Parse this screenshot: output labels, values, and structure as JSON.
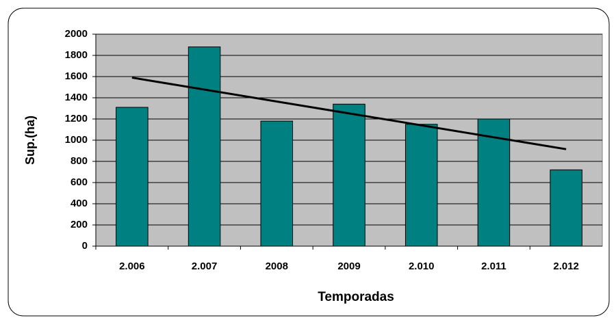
{
  "chart_data": {
    "type": "bar",
    "x_label": "Temporadas",
    "y_label": "Sup.(ha)",
    "categories": [
      "2.006",
      "2.007",
      "2008",
      "2009",
      "2.010",
      "2.011",
      "2.012"
    ],
    "values": [
      1310,
      1880,
      1180,
      1340,
      1150,
      1200,
      720
    ],
    "color": "#008080",
    "trendline": {
      "start": 1590,
      "end": 915,
      "color": "#000000"
    },
    "ylim": [
      0,
      2000
    ],
    "yticks": [
      0,
      200,
      400,
      600,
      800,
      1000,
      1200,
      1400,
      1600,
      1800,
      2000
    ],
    "grid": true,
    "plot_background": "#c0c0c0"
  }
}
